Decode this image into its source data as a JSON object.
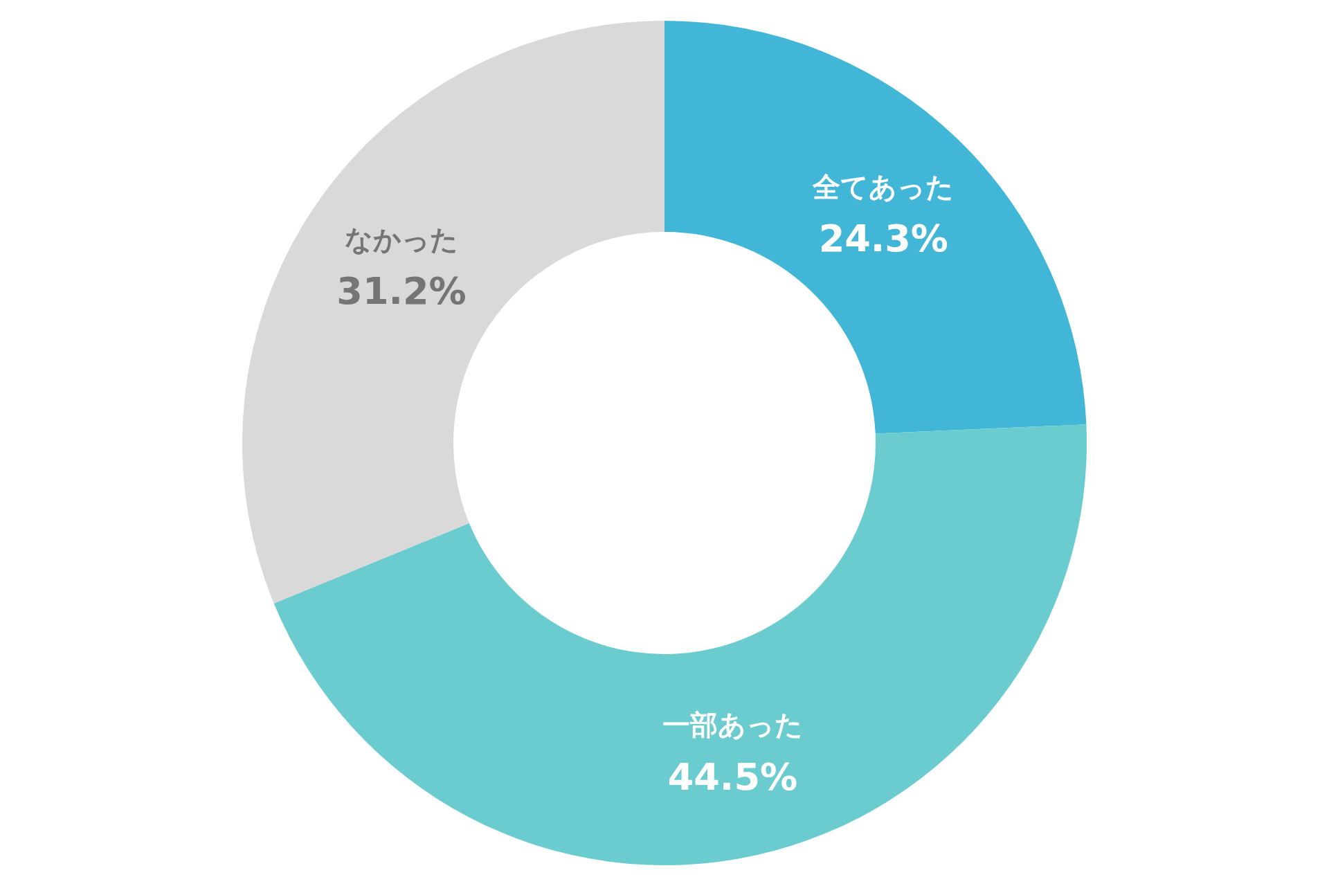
{
  "chart_data": {
    "type": "donut",
    "categories": [
      "全てあった",
      "一部あった",
      "なかった"
    ],
    "values": [
      24.3,
      44.5,
      31.2
    ],
    "colors": [
      "#42b6d6",
      "#6bcccf",
      "#d9d9d9"
    ],
    "value_labels": [
      "24.3%",
      "44.5%",
      "31.2%"
    ],
    "legend": false
  }
}
